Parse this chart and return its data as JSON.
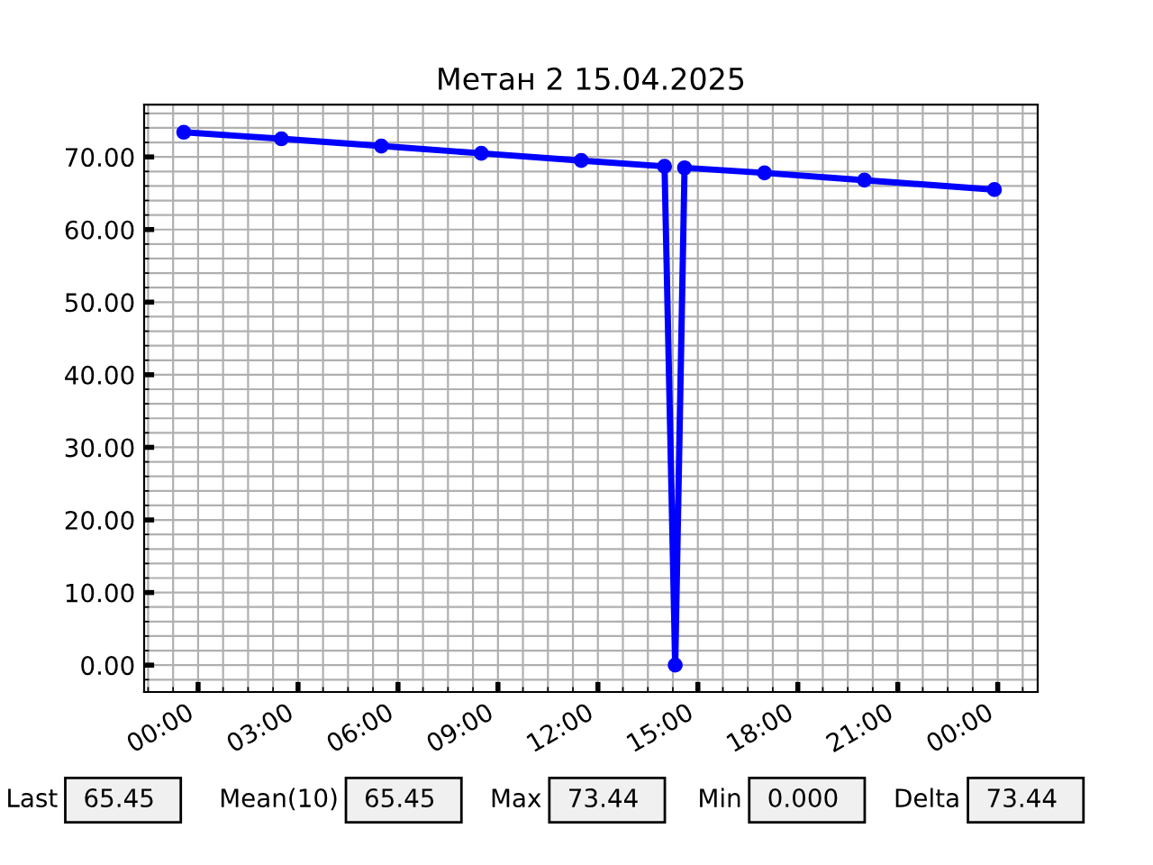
{
  "chart_data": {
    "type": "line",
    "title": "Метан 2 15.04.2025",
    "series": [
      {
        "color": "#0000ff",
        "x": [
          -0.43,
          2.5,
          5.5,
          8.5,
          11.5,
          14.0,
          14.32,
          14.6,
          17.0,
          20.0,
          23.9
        ],
        "values": [
          73.4,
          72.5,
          71.5,
          70.5,
          69.5,
          68.7,
          0,
          68.5,
          67.8,
          66.8,
          65.5
        ]
      }
    ],
    "marker": "circle",
    "line_style": "solid",
    "xlim": [
      -1.62,
      25.2
    ],
    "xticks": [
      {
        "value": 0,
        "label": "00:00"
      },
      {
        "value": 3,
        "label": "03:00"
      },
      {
        "value": 6,
        "label": "06:00"
      },
      {
        "value": 9,
        "label": "09:00"
      },
      {
        "value": 12,
        "label": "12:00"
      },
      {
        "value": 15,
        "label": "15:00"
      },
      {
        "value": 18,
        "label": "18:00"
      },
      {
        "value": 21,
        "label": "21:00"
      },
      {
        "value": 24,
        "label": "00:00"
      }
    ],
    "ylim": [
      -3.7,
      77.2
    ],
    "yticks": [
      {
        "value": 0,
        "label": "0.00"
      },
      {
        "value": 10,
        "label": "10.00"
      },
      {
        "value": 20,
        "label": "20.00"
      },
      {
        "value": 30,
        "label": "30.00"
      },
      {
        "value": 40,
        "label": "40.00"
      },
      {
        "value": 50,
        "label": "50.00"
      },
      {
        "value": 60,
        "label": "60.00"
      },
      {
        "value": 70,
        "label": "70.00"
      }
    ],
    "grid": true,
    "annotations": [
      "Last",
      "65.45",
      "Mean(10)",
      "65.45",
      "Max",
      "73.44",
      "Min",
      "0.000",
      "Delta",
      "73.44"
    ]
  }
}
